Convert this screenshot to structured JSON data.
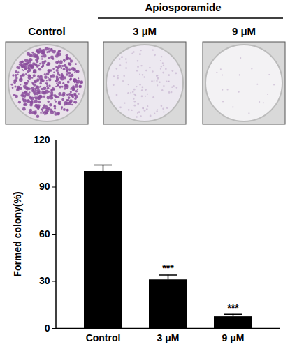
{
  "chart_data": {
    "type": "bar",
    "title": "Apiosporamide",
    "categories": [
      "Control",
      "3 μM",
      "9 μM"
    ],
    "values": [
      100,
      31,
      7.5
    ],
    "errors": [
      4,
      3,
      1.5
    ],
    "significance": [
      null,
      "***",
      "***"
    ],
    "color": "#000000",
    "ylabel": "Formed colony(%)",
    "ylim": [
      0,
      120
    ],
    "yticks": [
      0,
      30,
      60,
      90,
      120
    ]
  }
}
